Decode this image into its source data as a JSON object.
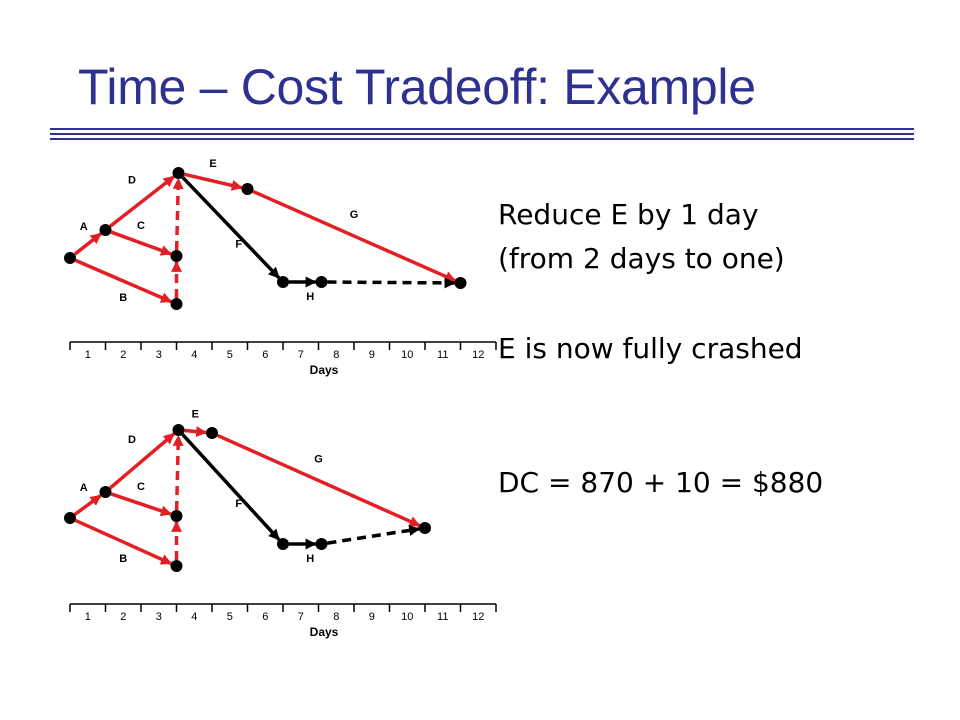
{
  "slide": {
    "title": "Time – Cost Tradeoff: Example"
  },
  "text_block": {
    "lines": [
      "Reduce E by 1 day",
      "(from 2 days to one)",
      "E is now fully crashed",
      "DC = 870 + 10 = $880"
    ]
  },
  "colors": {
    "title": "#2e3192",
    "critical": "#e31e24",
    "noncritical": "#000000",
    "rule": "#2e3192"
  },
  "diagrams": [
    {
      "axis": {
        "ticks": [
          "1",
          "2",
          "3",
          "4",
          "5",
          "6",
          "7",
          "8",
          "9",
          "10",
          "11",
          "12"
        ],
        "title": "Days"
      },
      "nodes": {
        "1": 0,
        "2": 1,
        "3": 3,
        "4": 3,
        "5": 3,
        "6": 5,
        "7": 6,
        "8": 7,
        "9": 11
      },
      "activities": [
        {
          "name": "A",
          "from": "1",
          "to": "2",
          "critical": true,
          "dashed": false
        },
        {
          "name": "B",
          "from": "1",
          "to": "4",
          "critical": true,
          "dashed": false
        },
        {
          "name": "C",
          "from": "2",
          "to": "3",
          "critical": true,
          "dashed": false
        },
        {
          "name": "D",
          "from": "2",
          "to": "5",
          "critical": true,
          "dashed": false
        },
        {
          "name": "E",
          "from": "5",
          "to": "6",
          "critical": true,
          "dashed": false
        },
        {
          "name": "F",
          "from": "5",
          "to": "7",
          "critical": false,
          "dashed": false
        },
        {
          "name": "G",
          "from": "6",
          "to": "9",
          "critical": true,
          "dashed": false
        },
        {
          "name": "H",
          "from": "7",
          "to": "8",
          "critical": false,
          "dashed": false
        },
        {
          "name": "",
          "from": "4",
          "to": "3",
          "critical": true,
          "dashed": true
        },
        {
          "name": "",
          "from": "3",
          "to": "5",
          "critical": true,
          "dashed": true
        },
        {
          "name": "",
          "from": "8",
          "to": "9",
          "critical": false,
          "dashed": true
        }
      ]
    },
    {
      "axis": {
        "ticks": [
          "1",
          "2",
          "3",
          "4",
          "5",
          "6",
          "7",
          "8",
          "9",
          "10",
          "11",
          "12"
        ],
        "title": "Days"
      },
      "nodes": {
        "1": 0,
        "2": 1,
        "3": 3,
        "4": 3,
        "5": 3,
        "6": 4,
        "7": 6,
        "8": 7,
        "9": 10
      },
      "activities": [
        {
          "name": "A",
          "from": "1",
          "to": "2",
          "critical": true,
          "dashed": false
        },
        {
          "name": "B",
          "from": "1",
          "to": "4",
          "critical": true,
          "dashed": false
        },
        {
          "name": "C",
          "from": "2",
          "to": "3",
          "critical": true,
          "dashed": false
        },
        {
          "name": "D",
          "from": "2",
          "to": "5",
          "critical": true,
          "dashed": false
        },
        {
          "name": "E",
          "from": "5",
          "to": "6",
          "critical": true,
          "dashed": false
        },
        {
          "name": "F",
          "from": "5",
          "to": "7",
          "critical": false,
          "dashed": false
        },
        {
          "name": "G",
          "from": "6",
          "to": "9",
          "critical": true,
          "dashed": false
        },
        {
          "name": "H",
          "from": "7",
          "to": "8",
          "critical": false,
          "dashed": false
        },
        {
          "name": "",
          "from": "4",
          "to": "3",
          "critical": true,
          "dashed": true
        },
        {
          "name": "",
          "from": "3",
          "to": "5",
          "critical": true,
          "dashed": true
        },
        {
          "name": "",
          "from": "8",
          "to": "9",
          "critical": false,
          "dashed": true
        }
      ]
    }
  ]
}
